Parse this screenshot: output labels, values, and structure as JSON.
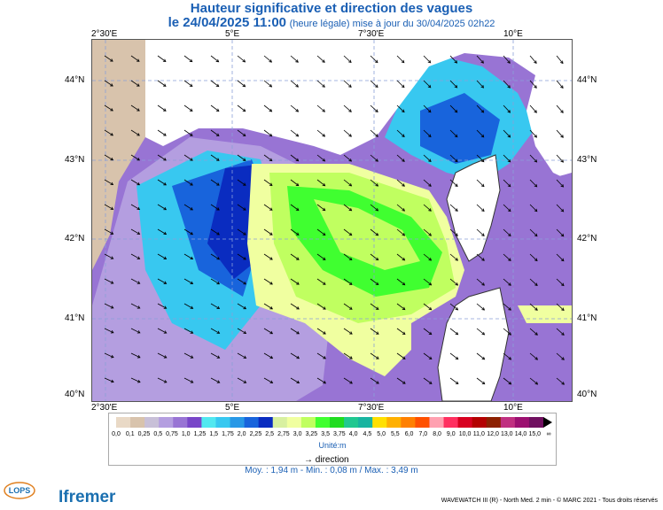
{
  "header": {
    "title": "Hauteur significative et direction des vagues",
    "date_bold": "le 24/04/2025 11:00",
    "date_note": "(heure légale) mise à jour du 30/04/2025 02h22"
  },
  "map": {
    "lon_ticks": [
      "2°30'E",
      "5°E",
      "7°30'E",
      "10°E"
    ],
    "lat_ticks": [
      "44°N",
      "43°N",
      "42°N",
      "41°N",
      "40°N"
    ],
    "lon_range": [
      2.0,
      11.0
    ],
    "lat_range": [
      40.0,
      44.5
    ],
    "grid": true
  },
  "legend": {
    "labels": [
      "0,0",
      "0,1",
      "0,25",
      "0,5",
      "0,75",
      "1,0",
      "1,25",
      "1,5",
      "1,75",
      "2,0",
      "2,25",
      "2,5",
      "2,75",
      "3,0",
      "3,25",
      "3,5",
      "3,75",
      "4,0",
      "4,5",
      "5,0",
      "5,5",
      "6,0",
      "7,0",
      "8,0",
      "9,0",
      "10,0",
      "11,0",
      "12,0",
      "13,0",
      "14,0",
      "15,0",
      "∞"
    ],
    "colors": [
      "#e9d9c6",
      "#d8c3ac",
      "#c8c0d8",
      "#b49ee0",
      "#9874d4",
      "#7846c8",
      "#52e8f0",
      "#38c8f0",
      "#2898e6",
      "#1864dc",
      "#0a2cc0",
      "#d8f0a0",
      "#f0ffa0",
      "#c0ff60",
      "#40ff30",
      "#20dc20",
      "#20c890",
      "#18b4a0",
      "#ffe000",
      "#ffb000",
      "#ff8000",
      "#ff5000",
      "#ffa0b0",
      "#ff3060",
      "#d80020",
      "#b40000",
      "#8c2000",
      "#c03080",
      "#9c1070",
      "#701060"
    ],
    "unit": "Unité:m",
    "direction_label": "direction"
  },
  "stats": {
    "text": "Moy. : 1,94 m  -  Min. : 0,08 m / Max. : 3,49 m"
  },
  "logos": {
    "lops": "LOPS",
    "ifremer": "Ifremer"
  },
  "footer": {
    "text": "WAVEWATCH III (R) - North Med. 2 min - © MARC 2021 - Tous droits réservés"
  }
}
